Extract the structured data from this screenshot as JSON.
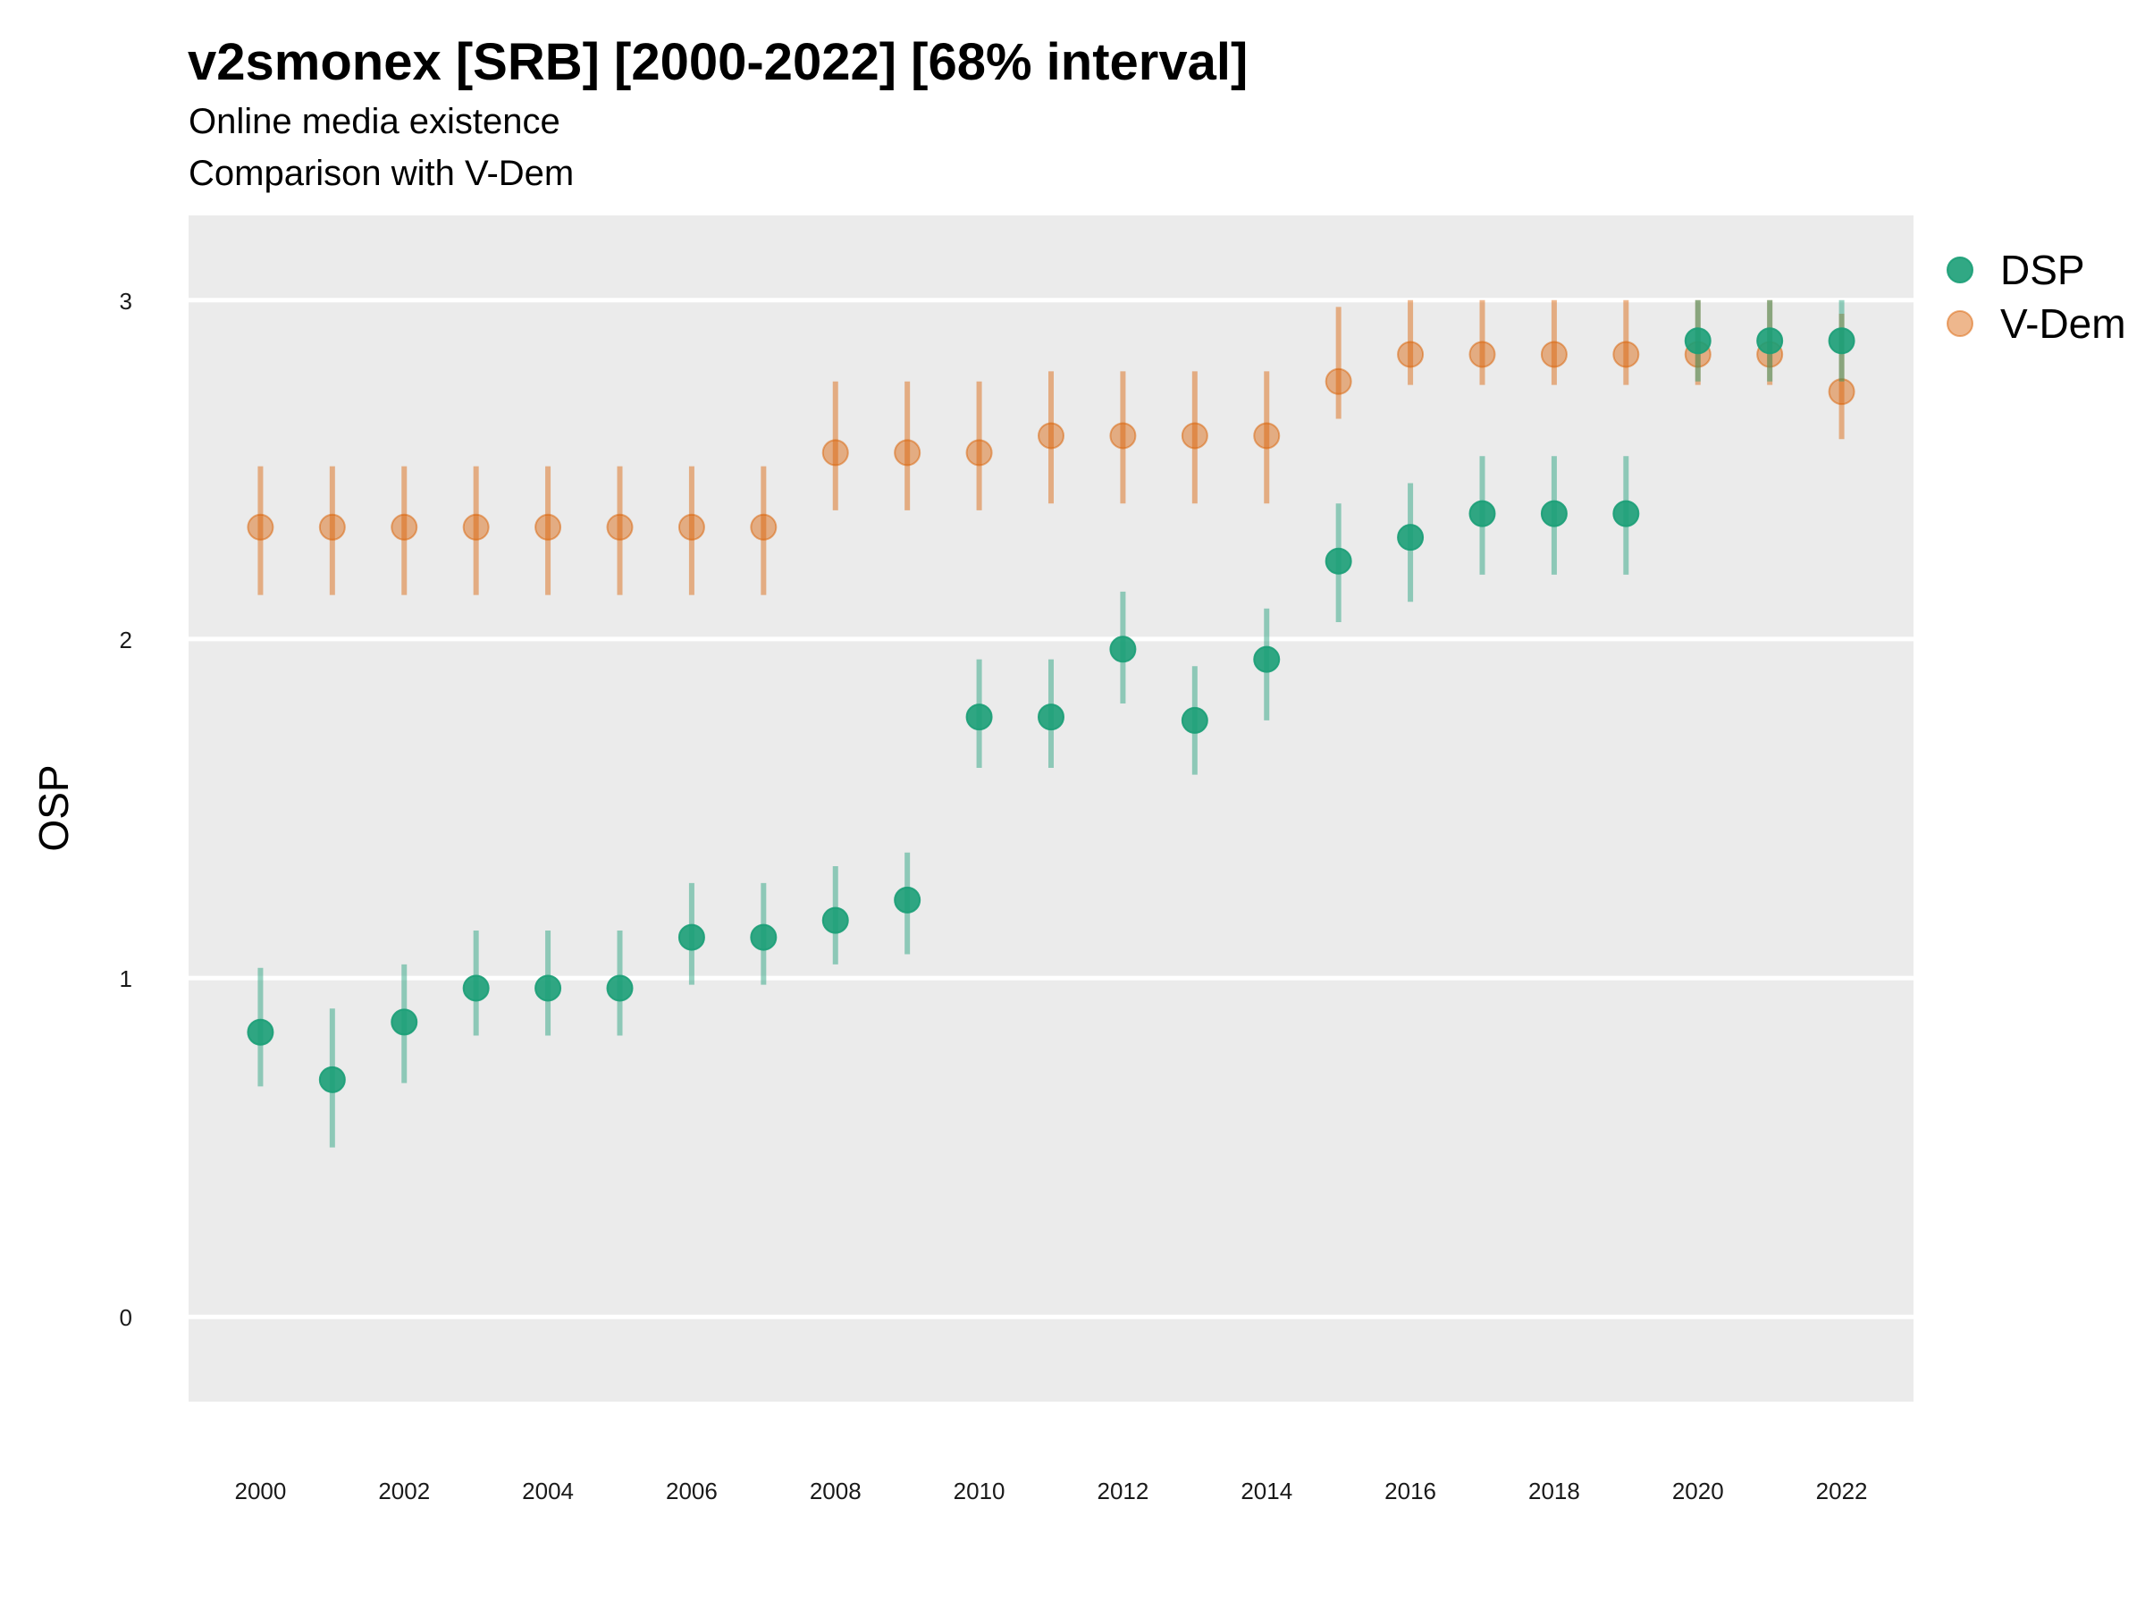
{
  "chart_data": {
    "type": "scatter",
    "title": "v2smonex [SRB] [2000-2022] [68% interval]",
    "subtitle": "Online media existence",
    "subtitle2": "Comparison with V-Dem",
    "ylabel": "OSP",
    "xlabel": "",
    "ylim": [
      -0.25,
      3.25
    ],
    "xlim": [
      1999,
      2023
    ],
    "yticks": [
      0,
      1,
      2,
      3
    ],
    "xticks": [
      2000,
      2002,
      2004,
      2006,
      2008,
      2010,
      2012,
      2014,
      2016,
      2018,
      2020,
      2022
    ],
    "grid": true,
    "legend_position": "top-right",
    "series": [
      {
        "name": "DSP",
        "color": "#1b9e77",
        "x": [
          2000,
          2001,
          2002,
          2003,
          2004,
          2005,
          2006,
          2007,
          2008,
          2009,
          2010,
          2011,
          2012,
          2013,
          2014,
          2015,
          2016,
          2017,
          2018,
          2019,
          2020,
          2021,
          2022
        ],
        "y": [
          0.84,
          0.7,
          0.87,
          0.97,
          0.97,
          0.97,
          1.12,
          1.12,
          1.17,
          1.23,
          1.77,
          1.77,
          1.97,
          1.76,
          1.94,
          2.23,
          2.3,
          2.37,
          2.37,
          2.37,
          2.88,
          2.88,
          2.88
        ],
        "lower": [
          0.68,
          0.5,
          0.69,
          0.83,
          0.83,
          0.83,
          0.98,
          0.98,
          1.04,
          1.07,
          1.62,
          1.62,
          1.81,
          1.6,
          1.76,
          2.05,
          2.11,
          2.19,
          2.19,
          2.19,
          2.76,
          2.76,
          2.76
        ],
        "upper": [
          1.03,
          0.91,
          1.04,
          1.14,
          1.14,
          1.14,
          1.28,
          1.28,
          1.33,
          1.37,
          1.94,
          1.94,
          2.14,
          1.92,
          2.09,
          2.4,
          2.46,
          2.54,
          2.54,
          2.54,
          3.0,
          3.0,
          3.0
        ]
      },
      {
        "name": "V-Dem",
        "color": "#d95f02",
        "x": [
          2000,
          2001,
          2002,
          2003,
          2004,
          2005,
          2006,
          2007,
          2008,
          2009,
          2010,
          2011,
          2012,
          2013,
          2014,
          2015,
          2016,
          2017,
          2018,
          2019,
          2020,
          2021,
          2022
        ],
        "y": [
          2.33,
          2.33,
          2.33,
          2.33,
          2.33,
          2.33,
          2.33,
          2.33,
          2.55,
          2.55,
          2.55,
          2.6,
          2.6,
          2.6,
          2.6,
          2.76,
          2.84,
          2.84,
          2.84,
          2.84,
          2.84,
          2.84,
          2.73
        ],
        "lower": [
          2.13,
          2.13,
          2.13,
          2.13,
          2.13,
          2.13,
          2.13,
          2.13,
          2.38,
          2.38,
          2.38,
          2.4,
          2.4,
          2.4,
          2.4,
          2.65,
          2.75,
          2.75,
          2.75,
          2.75,
          2.75,
          2.75,
          2.59
        ],
        "upper": [
          2.51,
          2.51,
          2.51,
          2.51,
          2.51,
          2.51,
          2.51,
          2.51,
          2.76,
          2.76,
          2.76,
          2.79,
          2.79,
          2.79,
          2.79,
          2.98,
          3.0,
          3.0,
          3.0,
          3.0,
          3.0,
          3.0,
          2.96
        ]
      }
    ]
  }
}
